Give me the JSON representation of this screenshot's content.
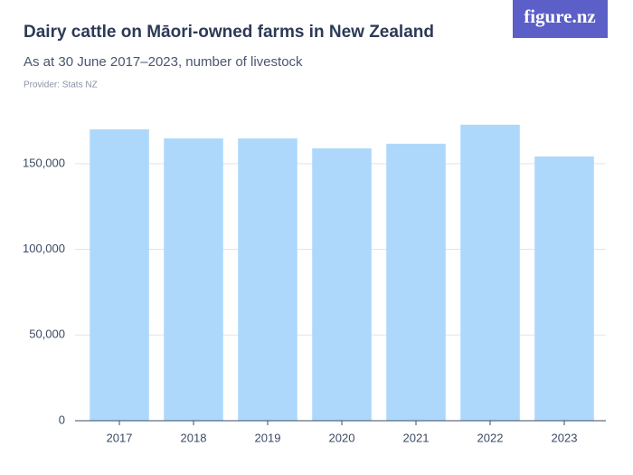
{
  "chart_data": {
    "type": "bar",
    "title": "Dairy cattle on Māori-owned farms in New Zealand",
    "subtitle": "As at 30 June 2017–2023,  number of livestock",
    "provider": "Provider: Stats NZ",
    "logo": "figure.nz",
    "categories": [
      "2017",
      "2018",
      "2019",
      "2020",
      "2021",
      "2022",
      "2023"
    ],
    "values": [
      170000,
      164700,
      164700,
      158900,
      161600,
      172700,
      154200
    ],
    "color": "#aed8fb",
    "ylim": [
      0,
      180000
    ],
    "yticks": [
      0,
      {
        "value": 50000,
        "label": "50,000"
      },
      {
        "value": 100000,
        "label": "100,000"
      },
      {
        "value": 150000,
        "label": "150,000"
      }
    ],
    "grid": true
  }
}
